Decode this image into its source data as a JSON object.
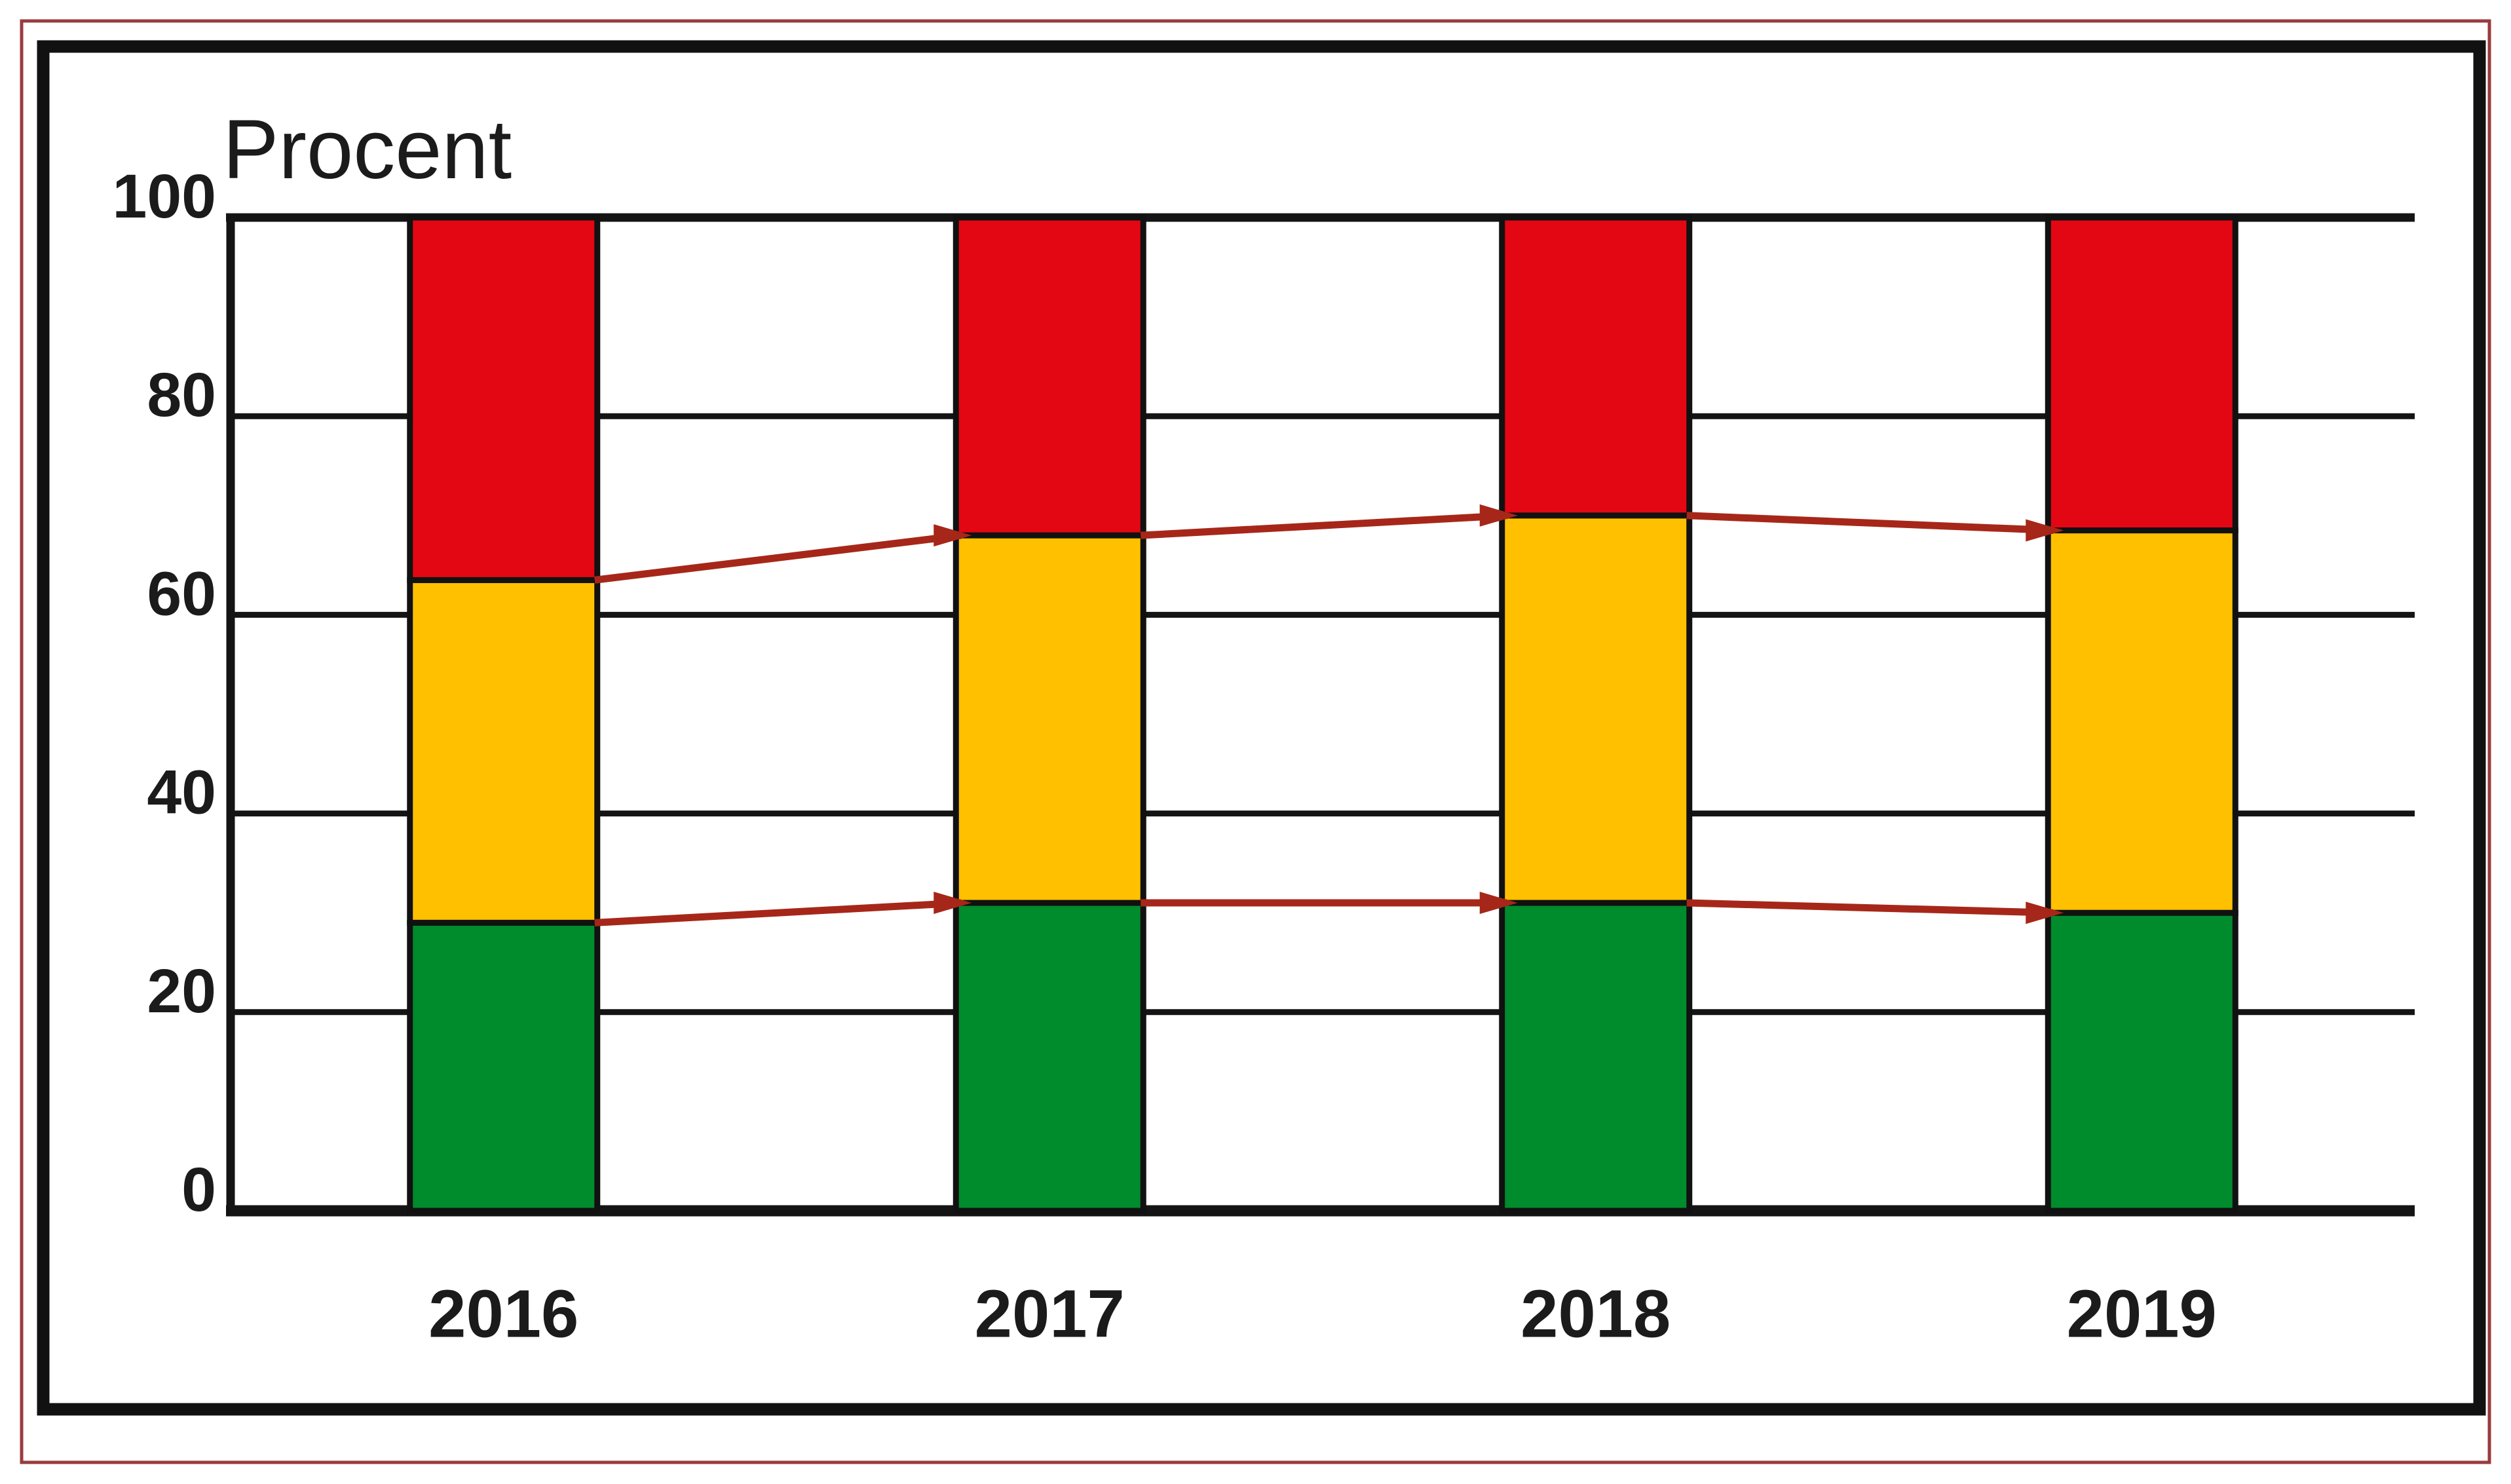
{
  "title": "Procent",
  "chart_data": {
    "type": "stacked-bar",
    "title": "Procent",
    "categories": [
      "2016",
      "2017",
      "2018",
      "2019"
    ],
    "y_ticks": [
      0,
      20,
      40,
      60,
      80,
      100
    ],
    "ylim": [
      0,
      100
    ],
    "grid": "horizontal",
    "legend": "none",
    "series": [
      {
        "name": "green-bottom-segment",
        "color": "#008B2D",
        "values": [
          29,
          31,
          31,
          30
        ]
      },
      {
        "name": "yellow-middle-segment",
        "color": "#FFC000",
        "values": [
          34.5,
          37,
          39,
          38.5
        ]
      },
      {
        "name": "red-top-segment",
        "color": "#E30613",
        "values": [
          36.5,
          32,
          30,
          31.5
        ]
      }
    ],
    "lines": [
      {
        "name": "lower-boundary-trend",
        "color": "#A62719",
        "values": [
          29,
          31,
          31,
          30
        ]
      },
      {
        "name": "upper-boundary-trend",
        "color": "#A62719",
        "values": [
          63.5,
          68,
          70,
          68.5
        ]
      }
    ]
  },
  "colors": {
    "outer_border": "#9A3B3E",
    "frame": "#111111",
    "gridline": "#141414",
    "text": "#1b1b1b",
    "background": "#ffffff"
  }
}
